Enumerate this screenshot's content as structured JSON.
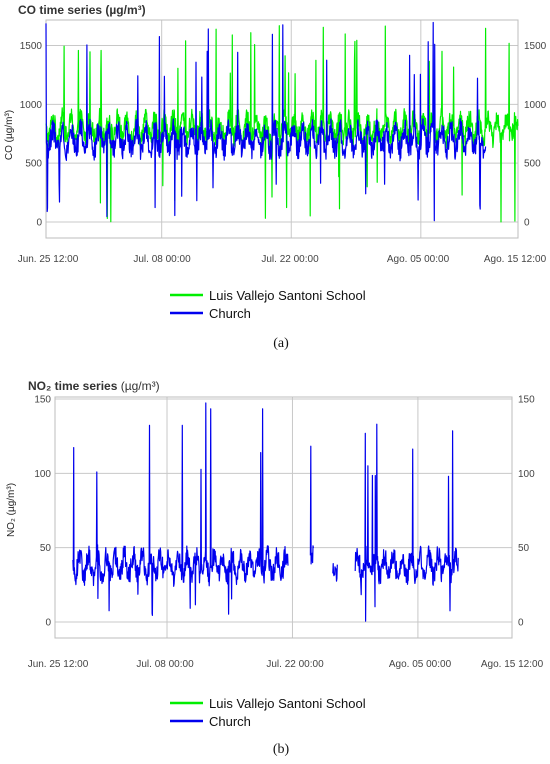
{
  "chart_data": [
    {
      "type": "line",
      "title": "CO time series (µg/m³)",
      "ylabel": "CO (µg/m³)",
      "ylim": [
        0,
        1700
      ],
      "y_ticks": [
        0,
        500,
        1000,
        1500
      ],
      "x_ticks": [
        "Jun. 25 12:00",
        "Jul. 08 00:00",
        "Jul. 22 00:00",
        "Ago. 05 00:00",
        "Ago. 15 12:00"
      ],
      "xlim": [
        "Jun. 25 12:00",
        "Ago. 15 12:00"
      ],
      "grid": true,
      "legend_position": "bottom",
      "caption": "(a)",
      "series": [
        {
          "name": "Luis Vallejo Santoni School",
          "color": "#00ee00",
          "baseline": 800,
          "amplitude": 170,
          "min_observed": 0,
          "max_observed": 1700,
          "coverage": [
            [
              "Jun. 25 12:00",
              "Ago. 15 12:00"
            ]
          ]
        },
        {
          "name": "Church",
          "color": "#0000ee",
          "baseline": 700,
          "amplitude": 180,
          "min_observed": 0,
          "max_observed": 1700,
          "coverage": [
            [
              "Jun. 25 12:00",
              "Ago. 12 00:00"
            ]
          ]
        }
      ]
    },
    {
      "type": "line",
      "title": "NO₂ time series",
      "title_unit": "(µg/m³)",
      "ylabel": "NO₂ (µg/m³)",
      "ylim": [
        0,
        150
      ],
      "y_ticks": [
        0,
        50,
        100,
        150
      ],
      "x_ticks": [
        "Jun. 25 12:00",
        "Jul. 08 00:00",
        "Jul. 22 00:00",
        "Ago. 05 00:00",
        "Ago. 15 12:00"
      ],
      "xlim": [
        "Jun. 25 12:00",
        "Ago. 15 12:00"
      ],
      "grid": true,
      "legend_position": "bottom",
      "caption": "(b)",
      "series": [
        {
          "name": "Luis Vallejo Santoni School",
          "color": "#00ee00",
          "coverage": []
        },
        {
          "name": "Church",
          "color": "#0000ee",
          "baseline": 38,
          "amplitude": 14,
          "min_observed": 0,
          "max_observed": 150,
          "coverage": [
            [
              "Jun. 27 12:00",
              "Jul. 21 12:00"
            ],
            [
              "Jul. 24 00:00",
              "Jul. 24 08:00"
            ],
            [
              "Jul. 26 12:00",
              "Jul. 27 00:00"
            ],
            [
              "Jul. 29 00:00",
              "Aug. 09 12:00"
            ]
          ]
        }
      ]
    }
  ]
}
